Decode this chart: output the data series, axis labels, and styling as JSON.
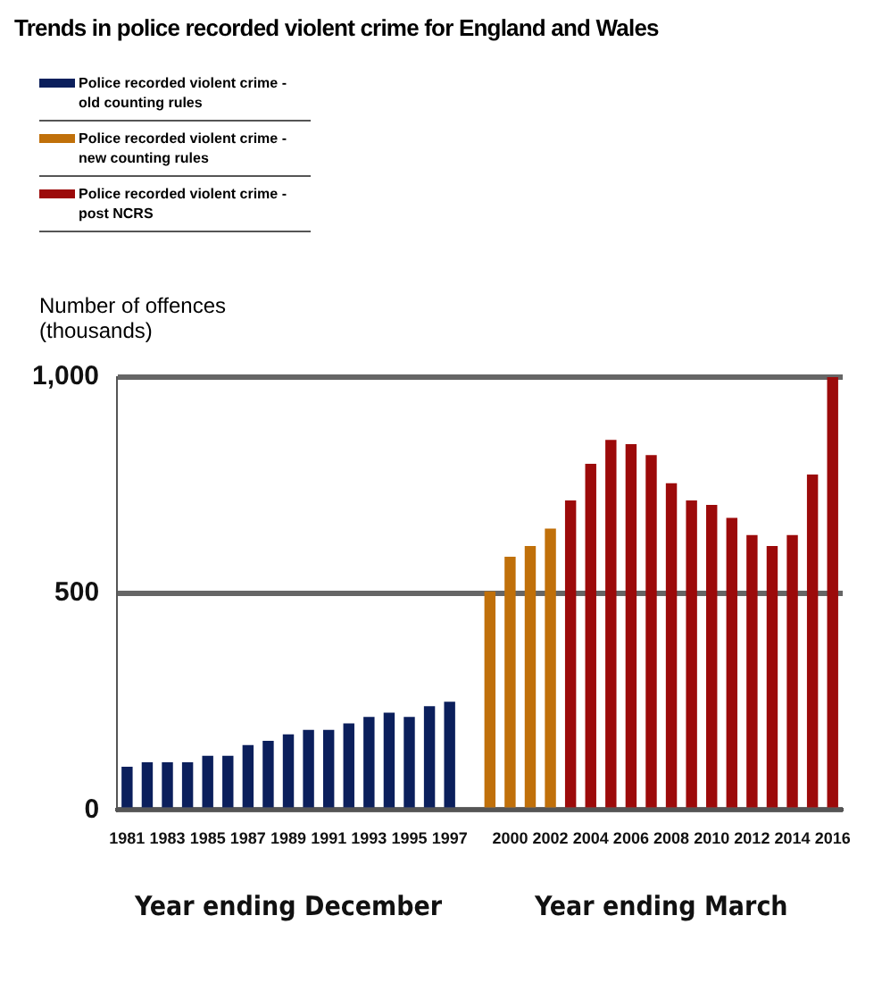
{
  "chart_data": {
    "type": "bar",
    "title": "Trends in police recorded violent crime for England and Wales",
    "ylabel": "Number of offences (thousands)",
    "categories": [
      "1981",
      null,
      "1983",
      null,
      "1985",
      null,
      "1987",
      null,
      "1989",
      null,
      "1991",
      null,
      "1993",
      null,
      "1995",
      null,
      "1997",
      null,
      null,
      "2000",
      null,
      "2002",
      null,
      "2004",
      null,
      "2006",
      null,
      "2008",
      null,
      "2010",
      null,
      "2012",
      null,
      "2014",
      null,
      "2016"
    ],
    "series": [
      {
        "name": "Police recorded violent crime - old counting rules",
        "color": "#0b1f5c",
        "values": [
          100,
          110,
          110,
          110,
          125,
          125,
          150,
          160,
          175,
          185,
          185,
          200,
          215,
          225,
          215,
          240,
          250,
          null,
          null,
          null,
          null,
          null,
          null,
          null,
          null,
          null,
          null,
          null,
          null,
          null,
          null,
          null,
          null,
          null,
          null,
          null
        ]
      },
      {
        "name": "Police recorded violent crime - new counting rules",
        "color": "#c0700a",
        "values": [
          null,
          null,
          null,
          null,
          null,
          null,
          null,
          null,
          null,
          null,
          null,
          null,
          null,
          null,
          null,
          null,
          null,
          null,
          505,
          585,
          610,
          650,
          null,
          null,
          null,
          null,
          null,
          null,
          null,
          null,
          null,
          null,
          null,
          null,
          null,
          null
        ]
      },
      {
        "name": "Police recorded violent crime - post NCRS",
        "color": "#9c0a0a",
        "values": [
          null,
          null,
          null,
          null,
          null,
          null,
          null,
          null,
          null,
          null,
          null,
          null,
          null,
          null,
          null,
          null,
          null,
          null,
          null,
          null,
          null,
          null,
          715,
          800,
          855,
          845,
          820,
          755,
          715,
          705,
          675,
          635,
          610,
          635,
          775,
          1000
        ]
      }
    ],
    "ylim": [
      0,
      1000
    ],
    "yticks": [
      0,
      500,
      {
        "value": 1000,
        "label": "1,000"
      }
    ],
    "grid": "y",
    "legend": "top left",
    "annotations": [
      "Year ending December",
      "Year ending March"
    ]
  }
}
